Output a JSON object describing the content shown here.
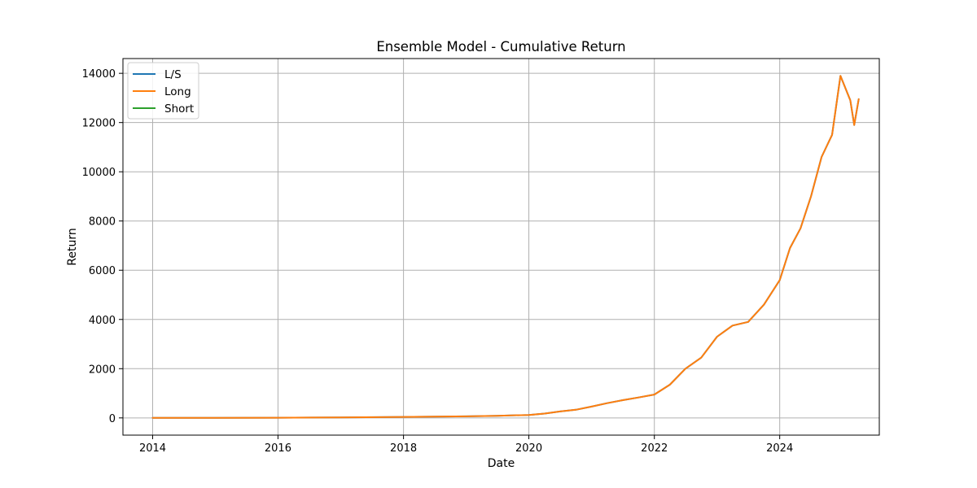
{
  "chart_data": {
    "type": "line",
    "title": "Ensemble Model - Cumulative Return",
    "xlabel": "Date",
    "ylabel": "Return",
    "xlim": [
      "2013-07-12",
      "2025-08-03"
    ],
    "ylim": [
      -700,
      14600
    ],
    "x_ticks": [
      "2014",
      "2016",
      "2018",
      "2020",
      "2022",
      "2024"
    ],
    "y_ticks": [
      "0",
      "2000",
      "4000",
      "6000",
      "8000",
      "10000",
      "12000",
      "14000"
    ],
    "grid": true,
    "legend_position": "top-left",
    "colors": {
      "L/S": "#1f77b4",
      "Long": "#ff7f0e",
      "Short": "#2ca02c"
    },
    "series": [
      {
        "name": "L/S",
        "x": [
          "2014-01-01",
          "2015-01-01",
          "2016-01-01",
          "2017-01-01",
          "2018-01-01",
          "2019-01-01",
          "2019-07-01",
          "2020-01-01",
          "2020-04-01",
          "2020-07-01",
          "2020-10-01",
          "2021-01-01",
          "2021-04-01",
          "2021-07-01",
          "2021-10-01",
          "2022-01-01",
          "2022-04-01",
          "2022-07-01",
          "2022-10-01",
          "2023-01-01",
          "2023-04-01",
          "2023-07-01",
          "2023-10-01",
          "2024-01-01",
          "2024-03-01",
          "2024-05-01",
          "2024-07-01",
          "2024-09-01",
          "2024-11-01",
          "2024-12-20",
          "2025-02-15",
          "2025-03-10",
          "2025-04-05"
        ],
        "y": [
          0,
          3,
          8,
          20,
          40,
          65,
          85,
          120,
          175,
          260,
          330,
          460,
          600,
          720,
          830,
          950,
          1350,
          2000,
          2450,
          3300,
          3750,
          3900,
          4600,
          5600,
          6900,
          7700,
          9000,
          10600,
          11500,
          13900,
          12900,
          11900,
          12950
        ]
      },
      {
        "name": "Long",
        "x": [
          "2014-01-01",
          "2015-01-01",
          "2016-01-01",
          "2017-01-01",
          "2018-01-01",
          "2019-01-01",
          "2019-07-01",
          "2020-01-01",
          "2020-04-01",
          "2020-07-01",
          "2020-10-01",
          "2021-01-01",
          "2021-04-01",
          "2021-07-01",
          "2021-10-01",
          "2022-01-01",
          "2022-04-01",
          "2022-07-01",
          "2022-10-01",
          "2023-01-01",
          "2023-04-01",
          "2023-07-01",
          "2023-10-01",
          "2024-01-01",
          "2024-03-01",
          "2024-05-01",
          "2024-07-01",
          "2024-09-01",
          "2024-11-01",
          "2024-12-20",
          "2025-02-15",
          "2025-03-10",
          "2025-04-05"
        ],
        "y": [
          0,
          3,
          8,
          20,
          40,
          65,
          85,
          120,
          175,
          260,
          330,
          460,
          600,
          720,
          830,
          950,
          1350,
          2000,
          2450,
          3300,
          3750,
          3900,
          4600,
          5600,
          6900,
          7700,
          9000,
          10600,
          11500,
          13900,
          12900,
          11900,
          12950
        ]
      },
      {
        "name": "Short",
        "x": [],
        "y": []
      }
    ]
  }
}
